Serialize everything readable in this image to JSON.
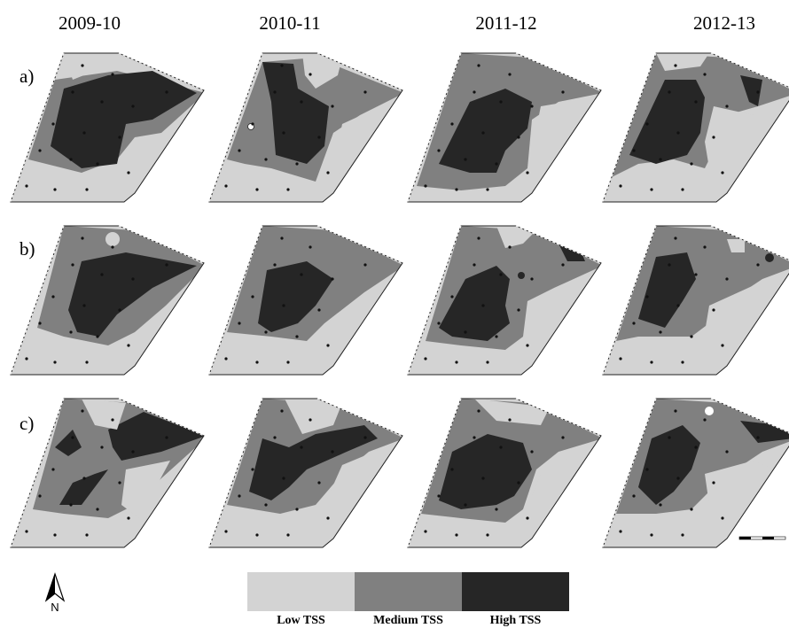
{
  "years": [
    "2009-10",
    "2010-11",
    "2011-12",
    "2012-13"
  ],
  "rows": [
    "a)",
    "b)",
    "c)"
  ],
  "legend": [
    {
      "label": "Low TSS",
      "color": "#d3d3d3"
    },
    {
      "label": "Medium TSS",
      "color": "#808080"
    },
    {
      "label": "High TSS",
      "color": "#262626"
    }
  ],
  "north_label": "N",
  "colors": {
    "low": "#d3d3d3",
    "medium": "#808080",
    "high": "#262626"
  }
}
